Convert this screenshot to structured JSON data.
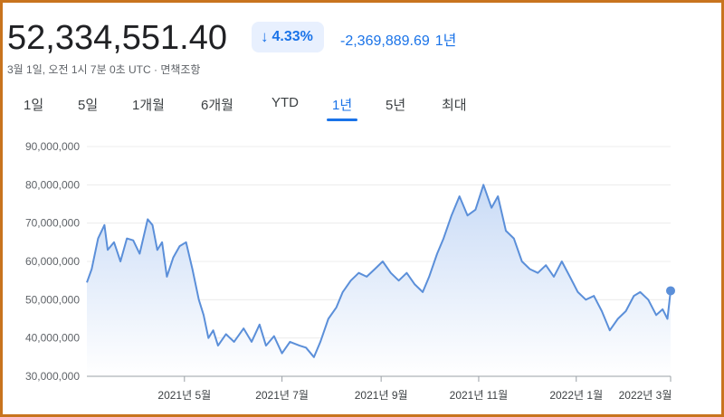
{
  "header": {
    "price": "52,334,551.40",
    "change_arrow": "↓",
    "change_percent": "4.33%",
    "change_abs": "-2,369,889.69",
    "change_period": "1년",
    "subline": "3월 1일, 오전 1시 7분 0초 UTC · 면책조항"
  },
  "tabs": [
    {
      "label": "1일",
      "active": false
    },
    {
      "label": "5일",
      "active": false
    },
    {
      "label": "1개월",
      "active": false
    },
    {
      "label": "6개월",
      "active": false
    },
    {
      "label": "YTD",
      "active": false
    },
    {
      "label": "1년",
      "active": true
    },
    {
      "label": "5년",
      "active": false
    },
    {
      "label": "최대",
      "active": false
    }
  ],
  "colors": {
    "accent": "#1a73e8",
    "line": "#5b8fd9",
    "fill_top": "#c9dbf6",
    "fill_bottom": "#ffffff",
    "border": "#c8741e"
  },
  "chart_data": {
    "type": "area",
    "ylim": [
      30000000,
      90000000
    ],
    "yticks": [
      30000000,
      40000000,
      50000000,
      60000000,
      70000000,
      80000000,
      90000000
    ],
    "ytick_labels": [
      "30,000,000",
      "40,000,000",
      "50,000,000",
      "60,000,000",
      "70,000,000",
      "80,000,000",
      "90,000,000"
    ],
    "xticks": [
      "2021-05-01",
      "2021-07-01",
      "2021-09-01",
      "2021-11-01",
      "2022-01-01",
      "2022-03-01"
    ],
    "xtick_labels": [
      "2021년 5월",
      "2021년 7월",
      "2021년 9월",
      "2021년 11월",
      "2022년 1월",
      "2022년 3월"
    ],
    "x_start": "2021-03-01",
    "x_end": "2022-03-01",
    "grid": true,
    "series": [
      {
        "x": [
          "2021-03-01",
          "2021-03-04",
          "2021-03-08",
          "2021-03-12",
          "2021-03-14",
          "2021-03-18",
          "2021-03-22",
          "2021-03-26",
          "2021-03-30",
          "2021-04-03",
          "2021-04-08",
          "2021-04-11",
          "2021-04-14",
          "2021-04-17",
          "2021-04-20",
          "2021-04-24",
          "2021-04-28",
          "2021-05-02",
          "2021-05-06",
          "2021-05-10",
          "2021-05-13",
          "2021-05-16",
          "2021-05-19",
          "2021-05-22",
          "2021-05-27",
          "2021-06-01",
          "2021-06-07",
          "2021-06-12",
          "2021-06-17",
          "2021-06-21",
          "2021-06-26",
          "2021-07-01",
          "2021-07-06",
          "2021-07-12",
          "2021-07-16",
          "2021-07-21",
          "2021-07-25",
          "2021-07-30",
          "2021-08-04",
          "2021-08-08",
          "2021-08-13",
          "2021-08-18",
          "2021-08-23",
          "2021-08-28",
          "2021-09-02",
          "2021-09-07",
          "2021-09-12",
          "2021-09-17",
          "2021-09-22",
          "2021-09-27",
          "2021-10-01",
          "2021-10-06",
          "2021-10-10",
          "2021-10-15",
          "2021-10-20",
          "2021-10-25",
          "2021-10-30",
          "2021-11-04",
          "2021-11-09",
          "2021-11-13",
          "2021-11-18",
          "2021-11-23",
          "2021-11-28",
          "2021-12-03",
          "2021-12-08",
          "2021-12-13",
          "2021-12-18",
          "2021-12-23",
          "2021-12-28",
          "2022-01-02",
          "2022-01-07",
          "2022-01-12",
          "2022-01-17",
          "2022-01-22",
          "2022-01-27",
          "2022-02-01",
          "2022-02-06",
          "2022-02-10",
          "2022-02-15",
          "2022-02-20",
          "2022-02-24",
          "2022-02-27",
          "2022-03-01"
        ],
        "values": [
          54500000,
          58000000,
          66000000,
          69500000,
          63000000,
          65000000,
          60000000,
          66000000,
          65500000,
          62000000,
          71000000,
          69500000,
          63000000,
          65000000,
          56000000,
          61000000,
          64000000,
          65000000,
          58000000,
          50000000,
          46000000,
          40000000,
          42000000,
          38000000,
          41000000,
          39000000,
          42500000,
          39000000,
          43500000,
          38000000,
          40500000,
          36000000,
          39000000,
          38000000,
          37500000,
          35000000,
          39000000,
          45000000,
          48000000,
          52000000,
          55000000,
          57000000,
          56000000,
          58000000,
          60000000,
          57000000,
          55000000,
          57000000,
          54000000,
          52000000,
          56000000,
          62000000,
          66000000,
          72000000,
          77000000,
          72000000,
          73500000,
          80000000,
          74000000,
          77000000,
          68000000,
          66000000,
          60000000,
          58000000,
          57000000,
          59000000,
          56000000,
          60000000,
          56000000,
          52000000,
          50000000,
          51000000,
          47000000,
          42000000,
          45000000,
          47000000,
          51000000,
          52000000,
          50000000,
          46000000,
          47500000,
          45000000,
          52334551
        ]
      }
    ]
  }
}
